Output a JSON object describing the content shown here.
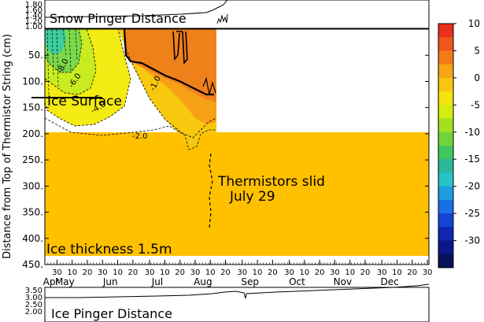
{
  "chart_data": [
    {
      "type": "line",
      "panel": "top",
      "title": "Snow Pinger Distance",
      "ylim": [
        1.0,
        1.8
      ],
      "y_ticks": [
        "1.80",
        "1.60",
        "1.40",
        "1.20",
        "1.00"
      ]
    },
    {
      "type": "heatmap",
      "panel": "main",
      "ylabel": "Distance from Top of Thermistor String (cm)",
      "ylim": [
        450,
        0
      ],
      "y_ticks": [
        "50.",
        "100.",
        "150.",
        "200.",
        "250.",
        "300.",
        "350.",
        "400.",
        "450."
      ],
      "x_months": [
        "Apr",
        "May",
        "Jun",
        "Jul",
        "Aug",
        "Sep",
        "Oct",
        "Nov",
        "Dec"
      ],
      "x_day_ticks": [
        "30",
        "10",
        "20",
        "30",
        "10",
        "20",
        "30",
        "10",
        "20",
        "30",
        "10",
        "20",
        "30",
        "10",
        "20",
        "30",
        "10",
        "20",
        "30",
        "10",
        "20",
        "30",
        "10",
        "20",
        "30",
        "10",
        "20",
        "30"
      ],
      "contour_labels": [
        "-8.0",
        "-6.0",
        "-4.0",
        "-2.0",
        "-1.0"
      ],
      "annotations": {
        "ice_surface": "Ice Surface",
        "thermistors_line1": "Thermistors slid",
        "thermistors_line2": "July 29",
        "ice_thickness": "Ice thickness 1.5m"
      },
      "colorbar": {
        "labels": [
          "10",
          "5",
          "0",
          "-5",
          "-10",
          "-15",
          "-20",
          "-25",
          "-30"
        ],
        "colors": [
          "#e8301a",
          "#f0561a",
          "#f47a18",
          "#f7a415",
          "#f9c60f",
          "#f4e40c",
          "#d4ec10",
          "#a4e01e",
          "#6fd43a",
          "#3fc65c",
          "#2ab89a",
          "#26c3c8",
          "#1f9be0",
          "#1a6fe6",
          "#1444d6",
          "#0e26b0",
          "#0a1888",
          "#08115a"
        ]
      }
    },
    {
      "type": "line",
      "panel": "bottom",
      "title": "Ice Pinger Distance",
      "ylim": [
        2.0,
        3.5
      ],
      "y_ticks": [
        "3.50",
        "3.00",
        "2.50",
        "2.00"
      ]
    }
  ]
}
